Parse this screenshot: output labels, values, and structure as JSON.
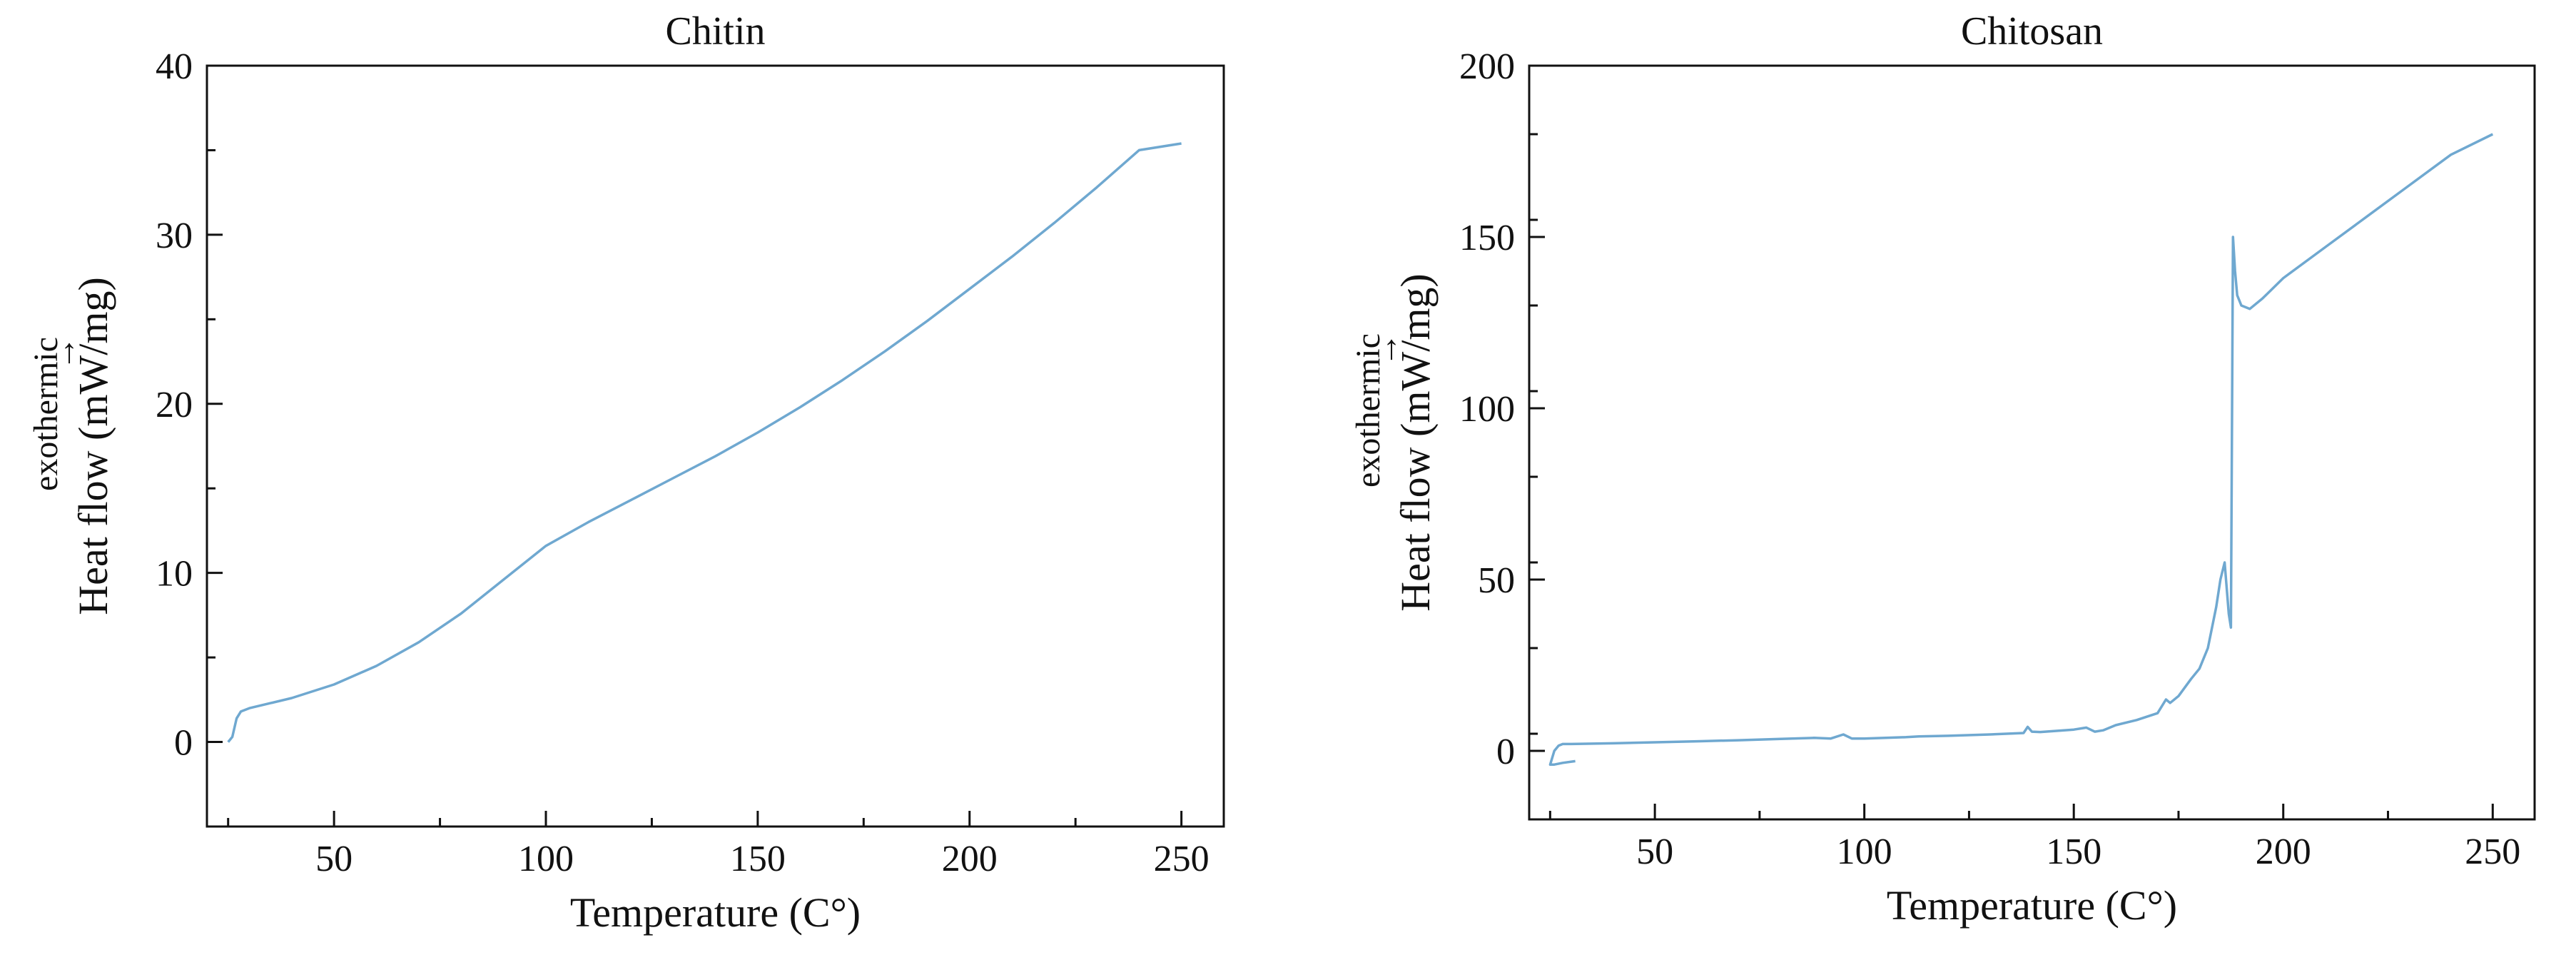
{
  "chart_data": [
    {
      "type": "line",
      "title": "Chitin",
      "xlabel": "Temperature (C°)",
      "ylabel": "Heat flow (mW/mg)",
      "exo_label": "exothermic",
      "exo_arrow": "→",
      "xlim": [
        20,
        260
      ],
      "ylim": [
        -5,
        40
      ],
      "xticks": [
        50,
        100,
        150,
        200,
        250
      ],
      "xticks_labels": [
        "50",
        "100",
        "150",
        "200",
        "250"
      ],
      "yticks": [
        0,
        10,
        20,
        30,
        40
      ],
      "yticks_labels": [
        "0",
        "10",
        "20",
        "30",
        "40"
      ],
      "grid": false,
      "line_color": "#6fa8d0",
      "series": [
        {
          "x": [
            25,
            26,
            27,
            28,
            30,
            35,
            40,
            50,
            60,
            70,
            80,
            90,
            100,
            110,
            120,
            130,
            140,
            150,
            160,
            170,
            180,
            190,
            200,
            210,
            220,
            230,
            240,
            250
          ],
          "y": [
            0.0,
            0.3,
            1.4,
            1.8,
            2.0,
            2.3,
            2.6,
            3.4,
            4.5,
            5.9,
            7.6,
            9.6,
            11.6,
            13.0,
            14.3,
            15.6,
            16.9,
            18.3,
            19.8,
            21.4,
            23.1,
            24.9,
            26.8,
            28.7,
            30.7,
            32.8,
            35.0,
            35.4
          ]
        }
      ]
    },
    {
      "type": "line",
      "title": "Chitosan",
      "xlabel": "Temperature (C°)",
      "ylabel": "Heat flow (mW/mg)",
      "exo_label": "exothermic",
      "exo_arrow": "→",
      "xlim": [
        20,
        260
      ],
      "ylim": [
        -20,
        200
      ],
      "xticks": [
        50,
        100,
        150,
        200,
        250
      ],
      "xticks_labels": [
        "50",
        "100",
        "150",
        "200",
        "250"
      ],
      "yticks": [
        0,
        50,
        100,
        150,
        200
      ],
      "yticks_labels": [
        "0",
        "50",
        "100",
        "150",
        "200"
      ],
      "grid": false,
      "line_color": "#6fa8d0",
      "series": [
        {
          "x": [
            31,
            28,
            26,
            25,
            26,
            27,
            28,
            30,
            40,
            50,
            60,
            70,
            80,
            88,
            92,
            95,
            97,
            100,
            110,
            113,
            120,
            130,
            138,
            139,
            140,
            142,
            150,
            153,
            155,
            157,
            160,
            165,
            170,
            172,
            173,
            175,
            178,
            180,
            182,
            184,
            185,
            186,
            187,
            187.5,
            188,
            188.5,
            189,
            190,
            192,
            195,
            200,
            210,
            220,
            230,
            240,
            250
          ],
          "y": [
            -3,
            -3.5,
            -4,
            -4,
            0,
            1.5,
            2,
            2,
            2.2,
            2.5,
            2.8,
            3.1,
            3.5,
            3.8,
            3.6,
            4.8,
            3.6,
            3.6,
            4,
            4.2,
            4.4,
            4.8,
            5.2,
            7,
            5.6,
            5.5,
            6.2,
            6.8,
            5.6,
            6.0,
            7.5,
            9,
            11,
            15,
            14,
            16,
            21,
            24,
            30,
            42,
            50,
            55,
            40,
            36,
            150,
            140,
            133,
            130,
            129,
            132,
            138,
            147,
            156,
            165,
            174,
            180
          ]
        }
      ]
    }
  ]
}
